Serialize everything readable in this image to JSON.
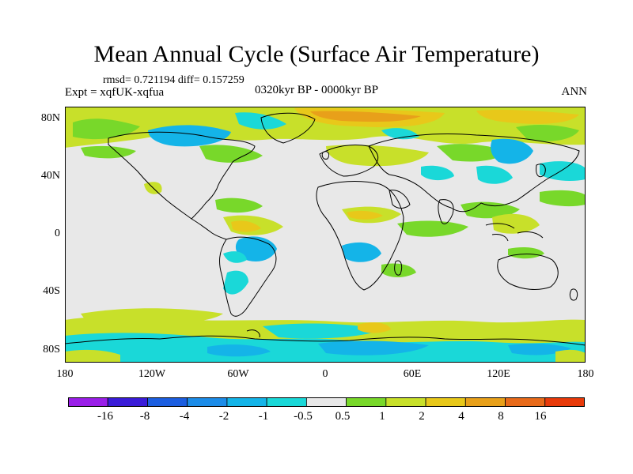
{
  "title": "Mean Annual Cycle (Surface Air Temperature)",
  "stats": "rmsd= 0.721194 diff= 0.157259",
  "experiment": "Expt = xqfUK-xqfua",
  "period": "0320kyr BP - 0000kyr BP",
  "season": "ANN",
  "lat_labels": [
    "80N",
    "40N",
    "0",
    "40S",
    "80S"
  ],
  "lon_labels": [
    "180",
    "120W",
    "60W",
    "0",
    "60E",
    "120E",
    "180"
  ],
  "colorbar": {
    "labels": [
      "-16",
      "-8",
      "-4",
      "-2",
      "-1",
      "-0.5",
      "0.5",
      "1",
      "2",
      "4",
      "8",
      "16"
    ],
    "colors": [
      "#9a1fe8",
      "#3a1cd8",
      "#1c5ee0",
      "#1c8ce8",
      "#14b4e8",
      "#1ad8d8",
      "#e8e8e8",
      "#78d82a",
      "#c8e02a",
      "#e8c81a",
      "#e8a01a",
      "#e86a1a",
      "#e83a0a"
    ]
  }
}
